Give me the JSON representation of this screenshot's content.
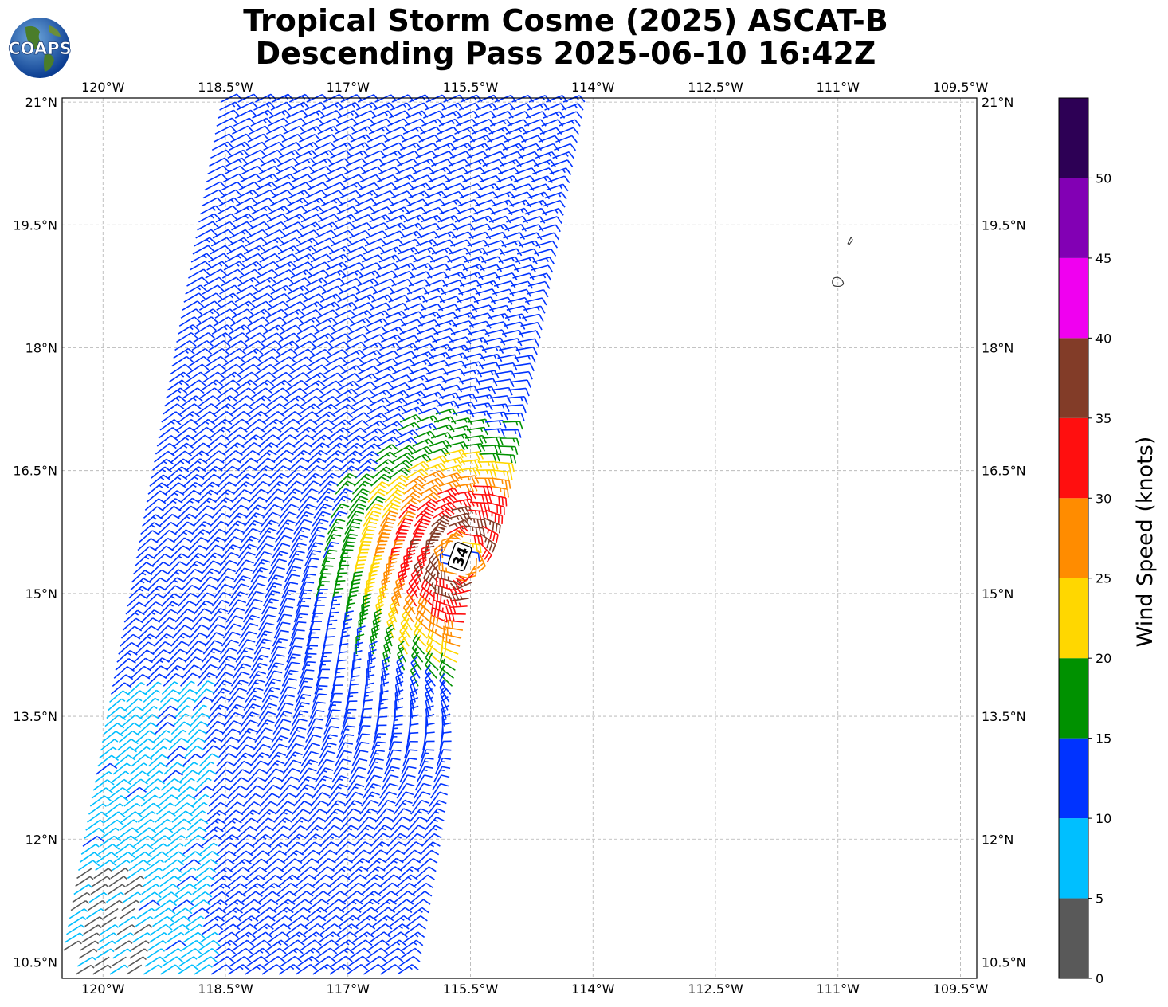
{
  "title": {
    "line1": "Tropical Storm Cosme (2025) ASCAT-B",
    "line2": "Descending Pass 2025-06-10 16:42Z"
  },
  "logo": {
    "text": "COAPS"
  },
  "map": {
    "lon_range": [
      -120.5,
      -109.3
    ],
    "lat_range": [
      10.3,
      21.05
    ],
    "lon_ticks": [
      {
        "value": -120,
        "label": "120°W"
      },
      {
        "value": -118.5,
        "label": "118.5°W"
      },
      {
        "value": -117,
        "label": "117°W"
      },
      {
        "value": -115.5,
        "label": "115.5°W"
      },
      {
        "value": -114,
        "label": "114°W"
      },
      {
        "value": -112.5,
        "label": "112.5°W"
      },
      {
        "value": -111,
        "label": "111°W"
      },
      {
        "value": -109.5,
        "label": "109.5°W"
      }
    ],
    "lat_ticks": [
      {
        "value": 21,
        "label": "21°N"
      },
      {
        "value": 19.5,
        "label": "19.5°N"
      },
      {
        "value": 18,
        "label": "18°N"
      },
      {
        "value": 16.5,
        "label": "16.5°N"
      },
      {
        "value": 15,
        "label": "15°N"
      },
      {
        "value": 13.5,
        "label": "13.5°N"
      },
      {
        "value": 12,
        "label": "12°N"
      },
      {
        "value": 10.5,
        "label": "10.5°N"
      }
    ],
    "grid": true,
    "storm_marker": {
      "lon": -115.63,
      "lat": 15.45,
      "label": "34"
    },
    "islands": [
      {
        "name": "island-large",
        "lon": -111.0,
        "lat": 18.8
      },
      {
        "name": "island-small",
        "lon": -110.85,
        "lat": 19.3
      }
    ],
    "swath": {
      "lat_top": 21.05,
      "lat_bottom": 10.3,
      "west_top_lon": -118.65,
      "west_bottom_lon": -120.65,
      "east_top_lon": -114.25,
      "east_bottom_lon": -116.3
    }
  },
  "colorbar": {
    "title": "Wind Speed (knots)",
    "bins": [
      {
        "min": 0,
        "max": 5,
        "color": "#595959"
      },
      {
        "min": 5,
        "max": 10,
        "color": "#00bfff"
      },
      {
        "min": 10,
        "max": 15,
        "color": "#0033ff"
      },
      {
        "min": 15,
        "max": 20,
        "color": "#009100"
      },
      {
        "min": 20,
        "max": 25,
        "color": "#ffd700"
      },
      {
        "min": 25,
        "max": 30,
        "color": "#ff8c00"
      },
      {
        "min": 30,
        "max": 35,
        "color": "#ff0f0f"
      },
      {
        "min": 35,
        "max": 40,
        "color": "#823c28"
      },
      {
        "min": 40,
        "max": 45,
        "color": "#f000f0"
      },
      {
        "min": 45,
        "max": 50,
        "color": "#8200b4"
      },
      {
        "min": 50,
        "max": 55,
        "color": "#2d0055"
      }
    ],
    "tick_labels": [
      "0",
      "5",
      "10",
      "15",
      "20",
      "25",
      "30",
      "35",
      "40",
      "45",
      "50"
    ]
  }
}
